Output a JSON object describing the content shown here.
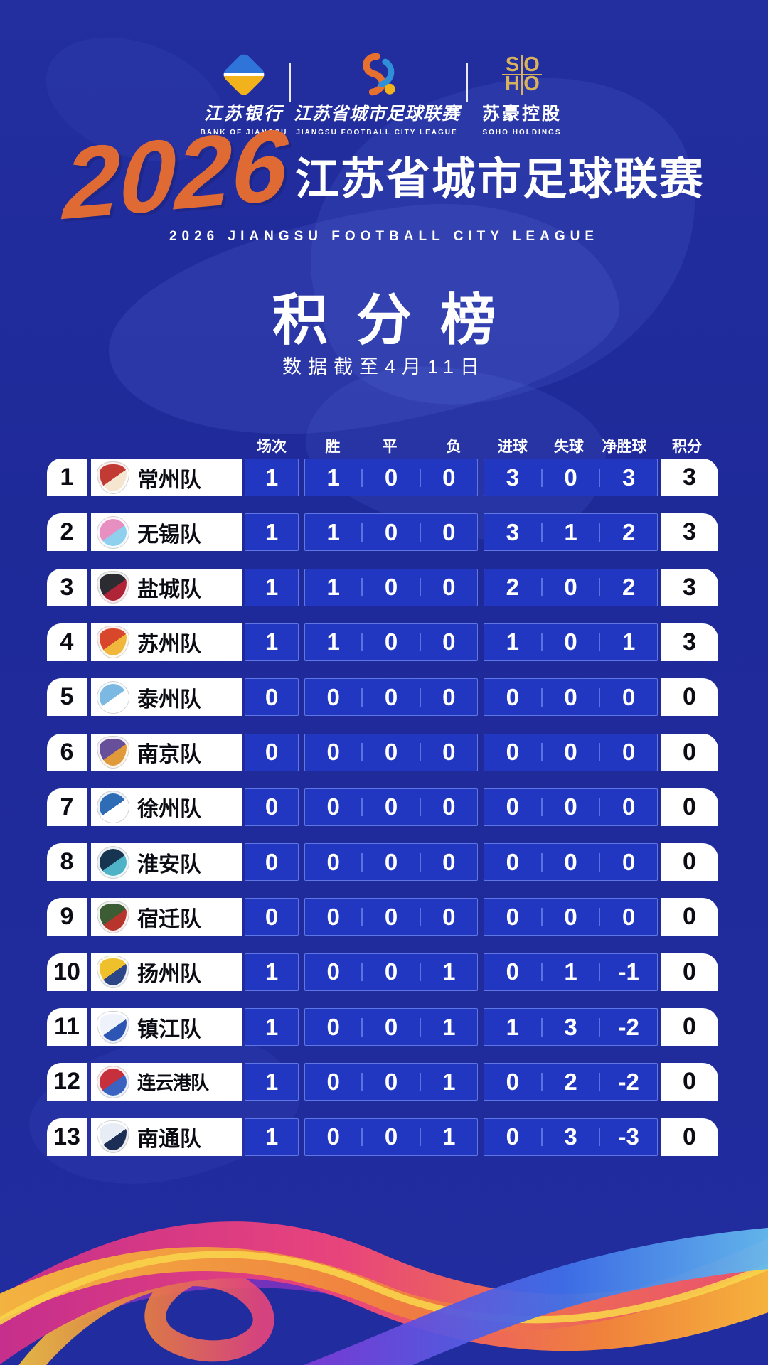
{
  "sponsors": {
    "bank": {
      "name_cn": "江苏银行",
      "name_en": "BANK OF JIANGSU"
    },
    "league": {
      "name_cn": "江苏省城市足球联赛",
      "name_en": "JIANGSU FOOTBALL CITY LEAGUE"
    },
    "soho": {
      "letters": [
        "S",
        "O",
        "H",
        "O"
      ],
      "name_cn": "苏豪控股",
      "name_en": "SOHO HOLDINGS"
    }
  },
  "title": {
    "year": "2026",
    "main": "江苏省城市足球联赛",
    "subtitle": "2026  JIANGSU FOOTBALL CITY LEAGUE"
  },
  "section": {
    "heading": "积分榜",
    "date_note": "数据截至4月11日"
  },
  "table": {
    "columns": {
      "played": "场次",
      "win": "胜",
      "draw": "平",
      "loss": "负",
      "goals_for": "进球",
      "goals_against": "失球",
      "goal_diff": "净胜球",
      "points": "积分"
    },
    "rows": [
      {
        "rank": "1",
        "team": "常州队",
        "played": "1",
        "win": "1",
        "draw": "0",
        "loss": "0",
        "goals_for": "3",
        "goals_against": "0",
        "goal_diff": "3",
        "points": "3",
        "logo": {
          "icon": "changzhou-crest-icon",
          "shape": "shield",
          "primary": "#c13a33",
          "secondary": "#f5e6cf"
        }
      },
      {
        "rank": "2",
        "team": "无锡队",
        "played": "1",
        "win": "1",
        "draw": "0",
        "loss": "0",
        "goals_for": "3",
        "goals_against": "1",
        "goal_diff": "2",
        "points": "3",
        "logo": {
          "icon": "wuxi-crest-icon",
          "shape": "circle",
          "primary": "#e88fc2",
          "secondary": "#8fd0ee"
        }
      },
      {
        "rank": "3",
        "team": "盐城队",
        "played": "1",
        "win": "1",
        "draw": "0",
        "loss": "0",
        "goals_for": "2",
        "goals_against": "0",
        "goal_diff": "2",
        "points": "3",
        "logo": {
          "icon": "yancheng-crest-icon",
          "shape": "shield",
          "primary": "#2b2b31",
          "secondary": "#b02437"
        }
      },
      {
        "rank": "4",
        "team": "苏州队",
        "played": "1",
        "win": "1",
        "draw": "0",
        "loss": "0",
        "goals_for": "1",
        "goals_against": "0",
        "goal_diff": "1",
        "points": "3",
        "logo": {
          "icon": "suzhou-crest-icon",
          "shape": "shield",
          "primary": "#d8472b",
          "secondary": "#f0b73c"
        }
      },
      {
        "rank": "5",
        "team": "泰州队",
        "played": "0",
        "win": "0",
        "draw": "0",
        "loss": "0",
        "goals_for": "0",
        "goals_against": "0",
        "goal_diff": "0",
        "points": "0",
        "logo": {
          "icon": "taizhou-crest-icon",
          "shape": "circle",
          "primary": "#7cb9e2",
          "secondary": "#ffffff"
        }
      },
      {
        "rank": "6",
        "team": "南京队",
        "played": "0",
        "win": "0",
        "draw": "0",
        "loss": "0",
        "goals_for": "0",
        "goals_against": "0",
        "goal_diff": "0",
        "points": "0",
        "logo": {
          "icon": "nanjing-crest-icon",
          "shape": "shield",
          "primary": "#675099",
          "secondary": "#e09a3a"
        }
      },
      {
        "rank": "7",
        "team": "徐州队",
        "played": "0",
        "win": "0",
        "draw": "0",
        "loss": "0",
        "goals_for": "0",
        "goals_against": "0",
        "goal_diff": "0",
        "points": "0",
        "logo": {
          "icon": "xuzhou-crest-icon",
          "shape": "circle",
          "primary": "#2e6cb5",
          "secondary": "#ffffff"
        }
      },
      {
        "rank": "8",
        "team": "淮安队",
        "played": "0",
        "win": "0",
        "draw": "0",
        "loss": "0",
        "goals_for": "0",
        "goals_against": "0",
        "goal_diff": "0",
        "points": "0",
        "logo": {
          "icon": "huaian-crest-icon",
          "shape": "circle",
          "primary": "#173450",
          "secondary": "#4fb3c8"
        }
      },
      {
        "rank": "9",
        "team": "宿迁队",
        "played": "0",
        "win": "0",
        "draw": "0",
        "loss": "0",
        "goals_for": "0",
        "goals_against": "0",
        "goal_diff": "0",
        "points": "0",
        "logo": {
          "icon": "suqian-crest-icon",
          "shape": "shield",
          "primary": "#3c5c33",
          "secondary": "#b8352e"
        }
      },
      {
        "rank": "10",
        "team": "扬州队",
        "played": "1",
        "win": "0",
        "draw": "0",
        "loss": "1",
        "goals_for": "0",
        "goals_against": "1",
        "goal_diff": "-1",
        "points": "0",
        "logo": {
          "icon": "yangzhou-crest-icon",
          "shape": "shield",
          "primary": "#eec02b",
          "secondary": "#2b4587"
        }
      },
      {
        "rank": "11",
        "team": "镇江队",
        "played": "1",
        "win": "0",
        "draw": "0",
        "loss": "1",
        "goals_for": "1",
        "goals_against": "3",
        "goal_diff": "-2",
        "points": "0",
        "logo": {
          "icon": "zhenjiang-crest-icon",
          "shape": "shield",
          "primary": "#eef2fb",
          "secondary": "#2d55b4"
        }
      },
      {
        "rank": "12",
        "team": "连云港队",
        "played": "1",
        "win": "0",
        "draw": "0",
        "loss": "1",
        "goals_for": "0",
        "goals_against": "2",
        "goal_diff": "-2",
        "points": "0",
        "logo": {
          "icon": "lianyungang-crest-icon",
          "shape": "circle",
          "primary": "#c5303c",
          "secondary": "#3a62c0"
        }
      },
      {
        "rank": "13",
        "team": "南通队",
        "played": "1",
        "win": "0",
        "draw": "0",
        "loss": "1",
        "goals_for": "0",
        "goals_against": "3",
        "goal_diff": "-3",
        "points": "0",
        "logo": {
          "icon": "nantong-crest-icon",
          "shape": "shield",
          "primary": "#e8ecf4",
          "secondary": "#1c2d56"
        }
      }
    ]
  },
  "colors": {
    "background": "#1f2a99",
    "stat_panel_blue": "#2137c2",
    "accent_orange": "#e06a34",
    "soho_gold": "#d9b25e",
    "row_box_white": "#ffffff",
    "text_dark": "#0c0c14",
    "ribbon_pink": "#e8447c",
    "ribbon_orange": "#f0823c",
    "ribbon_yellow": "#f6c33c",
    "ribbon_blue": "#3f6fe8"
  }
}
